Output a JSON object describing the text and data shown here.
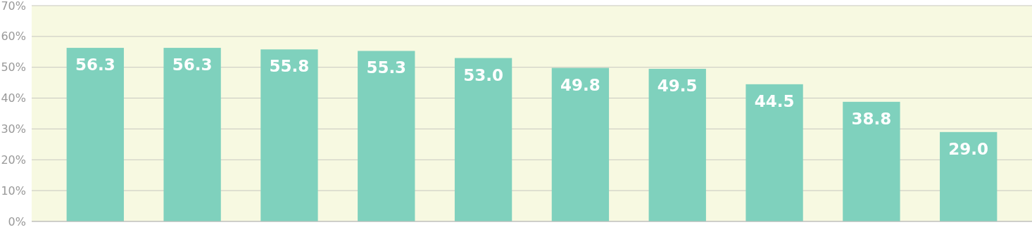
{
  "chart_data": {
    "type": "bar",
    "categories": [
      null,
      null,
      null,
      null,
      null,
      null,
      null,
      null,
      null,
      null
    ],
    "values": [
      56.3,
      56.3,
      55.8,
      55.3,
      53.0,
      49.8,
      49.5,
      44.5,
      38.8,
      29.0
    ],
    "color": "#7fd1bd",
    "ylim": [
      0,
      70
    ],
    "yticks": [
      {
        "value": 0,
        "label": "0%"
      },
      {
        "value": 10,
        "label": "10%"
      },
      {
        "value": 20,
        "label": "20%"
      },
      {
        "value": 30,
        "label": "30%"
      },
      {
        "value": 40,
        "label": "40%"
      },
      {
        "value": 50,
        "label": "50%"
      },
      {
        "value": 60,
        "label": "60%"
      },
      {
        "value": 70,
        "label": "70%"
      }
    ],
    "value_labels": [
      "56.3",
      "56.3",
      "55.8",
      "55.3",
      "53.0",
      "49.8",
      "49.5",
      "44.5",
      "38.8",
      "29.0"
    ],
    "grid": "y"
  }
}
